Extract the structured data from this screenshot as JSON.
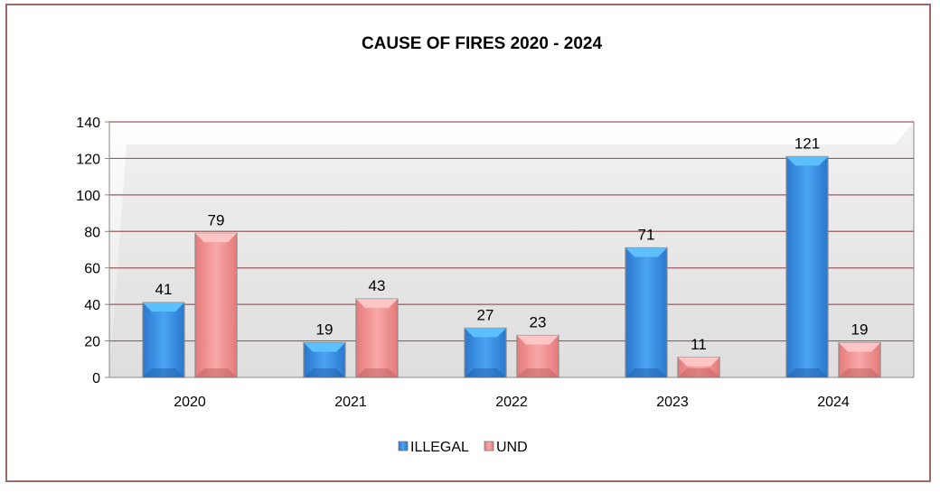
{
  "chart_data": {
    "type": "bar",
    "title": "CAUSE OF FIRES 2020 - 2024",
    "categories": [
      "2020",
      "2021",
      "2022",
      "2023",
      "2024"
    ],
    "series": [
      {
        "name": "ILLEGAL",
        "values": [
          41,
          19,
          27,
          71,
          121
        ],
        "color": "#3a8ee6"
      },
      {
        "name": "UND",
        "values": [
          79,
          43,
          23,
          11,
          19
        ],
        "color": "#f08c8c"
      }
    ],
    "ylim": [
      0,
      140
    ],
    "yticks": [
      "0",
      "20",
      "40",
      "60",
      "80",
      "100",
      "120",
      "140"
    ],
    "grid": true,
    "legend": "bottom"
  }
}
